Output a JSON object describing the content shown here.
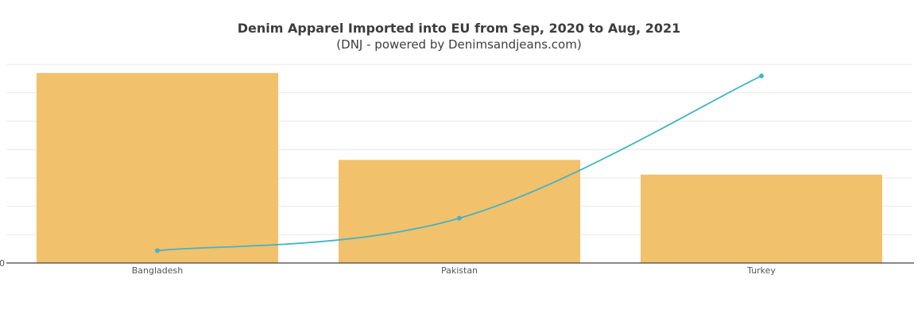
{
  "chart_data": {
    "type": "bar",
    "title": "Denim Apparel Imported into EU from Sep, 2020 to Aug, 2021",
    "subtitle": "(DNJ - powered by Denimsandjeans.com)",
    "xlabel": "",
    "ylabel": "",
    "categories": [
      "Bangladesh",
      "Pakistan",
      "Turkey"
    ],
    "ylim": [
      0,
      6.5
    ],
    "y_zero_label": "0",
    "grid": true,
    "series": [
      {
        "type": "bar",
        "values": [
          6.45,
          3.5,
          3.0
        ]
      },
      {
        "type": "line",
        "values": [
          0.42,
          1.52,
          6.35
        ]
      }
    ],
    "colors": {
      "bar": "#f2c16b",
      "line": "#45b3c7",
      "grid": "#e8e8e8",
      "axis": "#444444"
    }
  }
}
